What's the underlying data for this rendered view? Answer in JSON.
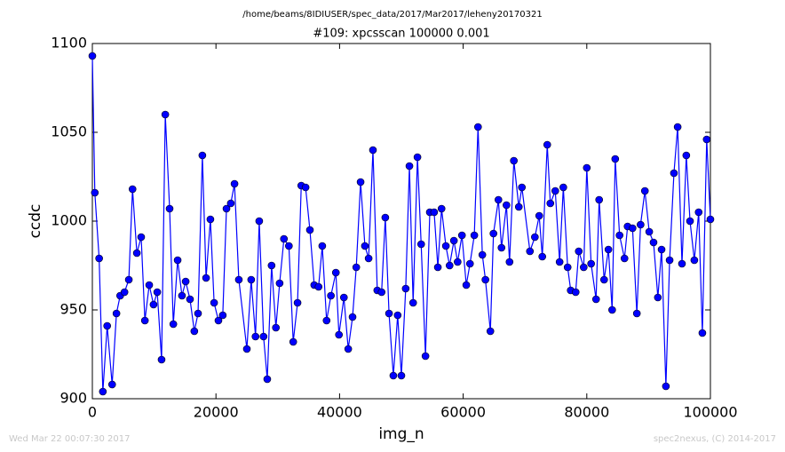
{
  "chart_data": {
    "type": "line",
    "suptitle": "/home/beams/8IDIUSER/spec_data/2017/Mar2017/leheny20170321",
    "title": "#109: xpcsscan 100000 0.001",
    "xlabel": "img_n",
    "ylabel": "ccdc",
    "footer_left": "Wed Mar 22 00:07:30 2017",
    "footer_right": "spec2nexus, (C) 2014-2017",
    "color": "#0000ff",
    "marker": "circle",
    "xlim": [
      0,
      100000
    ],
    "xticks": [
      0,
      20000,
      40000,
      60000,
      80000,
      100000
    ],
    "ylim": [
      900,
      1100
    ],
    "yticks": [
      900,
      950,
      1000,
      1050,
      1100
    ],
    "x": [
      0,
      400,
      1100,
      1700,
      2400,
      3200,
      3900,
      4500,
      5200,
      5900,
      6500,
      7200,
      7900,
      8500,
      9200,
      9900,
      10500,
      11200,
      11800,
      12500,
      13100,
      13800,
      14500,
      15100,
      15800,
      16500,
      17100,
      17800,
      18400,
      19100,
      19700,
      20400,
      21100,
      21700,
      22400,
      23000,
      23700,
      25000,
      25700,
      26400,
      27000,
      27700,
      28300,
      29000,
      29700,
      30300,
      31000,
      31800,
      32500,
      33200,
      33800,
      34500,
      35200,
      35900,
      36600,
      37200,
      37900,
      38600,
      39400,
      39900,
      40700,
      41400,
      42100,
      42700,
      43400,
      44100,
      44700,
      45400,
      46100,
      46800,
      47400,
      48000,
      48700,
      49400,
      50000,
      50700,
      51300,
      51900,
      52600,
      53200,
      53900,
      54600,
      55300,
      55900,
      56500,
      57200,
      57800,
      58500,
      59100,
      59800,
      60500,
      61100,
      61800,
      62400,
      63100,
      63600,
      64400,
      64900,
      65700,
      66200,
      67000,
      67500,
      68200,
      69000,
      69500,
      70800,
      71600,
      72300,
      72800,
      73600,
      74100,
      74900,
      75600,
      76200,
      76900,
      77400,
      78200,
      78700,
      79500,
      80000,
      80700,
      81500,
      82000,
      82800,
      83500,
      84100,
      84600,
      85300,
      86100,
      86600,
      87400,
      88100,
      88700,
      89400,
      90100,
      90800,
      91500,
      92100,
      92800,
      93400,
      94100,
      94700,
      95400,
      96100,
      96700,
      97400,
      98100,
      98700,
      99400,
      100000
    ],
    "values": [
      1093,
      1016,
      979,
      904,
      941,
      908,
      948,
      958,
      960,
      967,
      1018,
      982,
      991,
      944,
      964,
      953,
      960,
      922,
      1060,
      1007,
      942,
      978,
      958,
      966,
      956,
      938,
      948,
      1037,
      968,
      1001,
      954,
      944,
      947,
      1007,
      1010,
      1021,
      967,
      928,
      967,
      935,
      1000,
      935,
      911,
      975,
      940,
      965,
      990,
      986,
      932,
      954,
      1020,
      1019,
      995,
      964,
      963,
      986,
      944,
      958,
      971,
      936,
      957,
      928,
      946,
      974,
      1022,
      986,
      979,
      1040,
      961,
      960,
      1002,
      948,
      913,
      947,
      913,
      962,
      1031,
      954,
      1036,
      987,
      924,
      1005,
      1005,
      974,
      1007,
      986,
      975,
      989,
      977,
      992,
      964,
      976,
      992,
      1053,
      981,
      967,
      938,
      993,
      1012,
      985,
      1009,
      977,
      1034,
      1008,
      1019,
      983,
      991,
      1003,
      980,
      1043,
      1010,
      1017,
      977,
      1019,
      974,
      961,
      960,
      983,
      974,
      1030,
      976,
      956,
      1012,
      967,
      984,
      950,
      1035,
      992,
      979,
      997,
      996,
      948,
      998,
      1017,
      994,
      988,
      957,
      984,
      907,
      978,
      1027,
      1053,
      976,
      1037,
      1000,
      978,
      1005,
      937,
      1046,
      1001
    ]
  }
}
